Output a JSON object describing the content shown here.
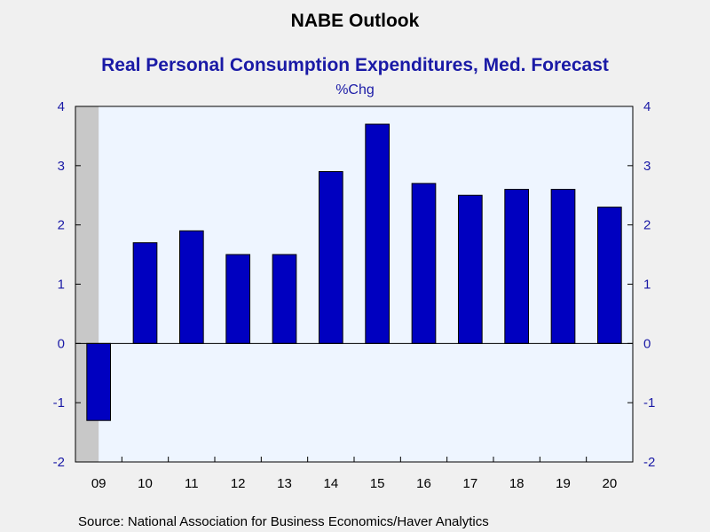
{
  "chart_data": {
    "type": "bar",
    "title": "NABE Outlook",
    "subtitle": "Real Personal Consumption Expenditures, Med. Forecast",
    "ylabel": "%Chg",
    "categories": [
      "09",
      "10",
      "11",
      "12",
      "13",
      "14",
      "15",
      "16",
      "17",
      "18",
      "19",
      "20"
    ],
    "values": [
      -1.3,
      1.7,
      1.9,
      1.5,
      1.5,
      2.9,
      3.7,
      2.7,
      2.5,
      2.6,
      2.6,
      2.3
    ],
    "ylim": [
      -2,
      4
    ],
    "yticks": [
      "-2",
      "-1",
      "0",
      "1",
      "2",
      "3",
      "4"
    ],
    "recession_shading": {
      "categories": [
        "09"
      ]
    },
    "source": "Source:  National Association for Business Economics/Haver Analytics",
    "colors": {
      "bar": "#0000c0",
      "plot_background": "#eef5ff",
      "recession": "#c8c8c8",
      "title": "#000000",
      "subtitle": "#1a1aa6",
      "axis_text": "#1a1aa6"
    },
    "grid": false,
    "legend": "none"
  }
}
